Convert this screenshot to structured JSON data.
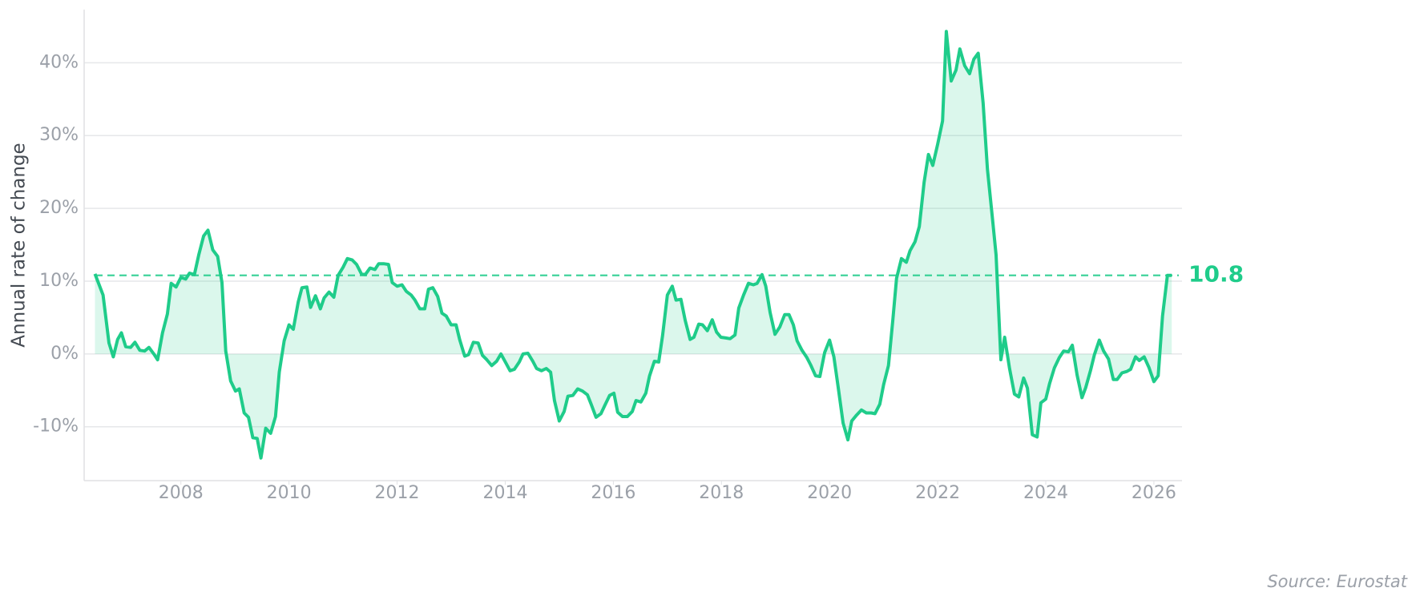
{
  "chart_data": {
    "type": "line",
    "ylabel": "Annual rate of change",
    "source": "Source: Eurostat",
    "color": "#1fcc8a",
    "grid": true,
    "reference_line": 10.8,
    "xlim": [
      2006.21,
      2026.52
    ],
    "ylim": [
      -17.4,
      47.3
    ],
    "xticks": [
      2008,
      2010,
      2012,
      2014,
      2016,
      2018,
      2020,
      2022,
      2024,
      2026
    ],
    "yticks": [
      {
        "value": -10,
        "label": "-10%"
      },
      {
        "value": 0,
        "label": "0%"
      },
      {
        "value": 10,
        "label": "10%"
      },
      {
        "value": 20,
        "label": "20%"
      },
      {
        "value": 30,
        "label": "30%"
      },
      {
        "value": 40,
        "label": "40%"
      }
    ],
    "x": [
      2006.41,
      2006.56,
      2006.67,
      2006.75,
      2006.83,
      2006.9,
      2006.98,
      2007.07,
      2007.15,
      2007.24,
      2007.33,
      2007.41,
      2007.5,
      2007.57,
      2007.66,
      2007.75,
      2007.82,
      2007.91,
      2008.0,
      2008.09,
      2008.16,
      2008.25,
      2008.33,
      2008.42,
      2008.5,
      2008.59,
      2008.68,
      2008.76,
      2008.83,
      2008.92,
      2009.01,
      2009.08,
      2009.17,
      2009.25,
      2009.33,
      2009.41,
      2009.48,
      2009.57,
      2009.66,
      2009.75,
      2009.82,
      2009.91,
      2010.0,
      2010.08,
      2010.17,
      2010.24,
      2010.33,
      2010.4,
      2010.49,
      2010.58,
      2010.65,
      2010.74,
      2010.83,
      2010.91,
      2011.0,
      2011.08,
      2011.17,
      2011.25,
      2011.34,
      2011.41,
      2011.5,
      2011.59,
      2011.66,
      2011.75,
      2011.84,
      2011.91,
      2012.0,
      2012.09,
      2012.17,
      2012.26,
      2012.33,
      2012.42,
      2012.51,
      2012.58,
      2012.66,
      2012.75,
      2012.83,
      2012.91,
      2013.0,
      2013.09,
      2013.16,
      2013.25,
      2013.32,
      2013.41,
      2013.5,
      2013.58,
      2013.66,
      2013.75,
      2013.84,
      2013.92,
      2014.01,
      2014.09,
      2014.17,
      2014.26,
      2014.33,
      2014.42,
      2014.51,
      2014.58,
      2014.67,
      2014.76,
      2014.84,
      2014.91,
      2015.0,
      2015.09,
      2015.16,
      2015.25,
      2015.34,
      2015.43,
      2015.52,
      2015.59,
      2015.68,
      2015.77,
      2015.84,
      2015.93,
      2016.01,
      2016.08,
      2016.17,
      2016.26,
      2016.35,
      2016.42,
      2016.51,
      2016.6,
      2016.67,
      2016.76,
      2016.84,
      2016.91,
      2017.0,
      2017.09,
      2017.16,
      2017.25,
      2017.33,
      2017.42,
      2017.49,
      2017.58,
      2017.65,
      2017.74,
      2017.83,
      2017.91,
      2017.99,
      2018.08,
      2018.16,
      2018.25,
      2018.32,
      2018.41,
      2018.5,
      2018.59,
      2018.66,
      2018.75,
      2018.82,
      2018.9,
      2018.99,
      2019.08,
      2019.17,
      2019.25,
      2019.33,
      2019.4,
      2019.49,
      2019.58,
      2019.65,
      2019.74,
      2019.82,
      2019.91,
      2020.0,
      2020.08,
      2020.16,
      2020.25,
      2020.34,
      2020.41,
      2020.5,
      2020.59,
      2020.68,
      2020.77,
      2020.84,
      2020.93,
      2021.0,
      2021.09,
      2021.17,
      2021.24,
      2021.33,
      2021.42,
      2021.49,
      2021.58,
      2021.66,
      2021.75,
      2021.83,
      2021.91,
      2022.0,
      2022.09,
      2022.16,
      2022.25,
      2022.34,
      2022.41,
      2022.5,
      2022.59,
      2022.67,
      2022.75,
      2022.84,
      2022.92,
      2023.01,
      2023.08,
      2023.17,
      2023.24,
      2023.33,
      2023.42,
      2023.5,
      2023.59,
      2023.66,
      2023.75,
      2023.84,
      2023.91,
      2024.0,
      2024.07,
      2024.16,
      2024.25,
      2024.33,
      2024.42,
      2024.49,
      2024.58,
      2024.67,
      2024.74,
      2024.83,
      2024.9,
      2024.99,
      2025.07,
      2025.16,
      2025.25,
      2025.32,
      2025.41,
      2025.5,
      2025.57,
      2025.66,
      2025.73,
      2025.82,
      2025.91,
      2026.0,
      2026.08,
      2026.16,
      2026.25,
      2026.33
    ],
    "values": [
      11.0,
      8.1,
      1.5,
      -0.4,
      2.0,
      2.9,
      1.0,
      0.9,
      1.6,
      0.5,
      0.4,
      0.9,
      0,
      -0.8,
      2.9,
      5.5,
      9.7,
      9.2,
      10.5,
      10.3,
      11.1,
      10.9,
      13.6,
      16.2,
      17.0,
      14.3,
      13.4,
      9.8,
      0.4,
      -3.7,
      -5.1,
      -4.8,
      -8.1,
      -8.7,
      -11.5,
      -11.6,
      -14.3,
      -10.2,
      -10.9,
      -8.6,
      -2.5,
      1.8,
      4.0,
      3.4,
      7.1,
      9.1,
      9.2,
      6.4,
      8.0,
      6.2,
      7.7,
      8.5,
      7.8,
      10.8,
      11.9,
      13.1,
      12.9,
      12.3,
      11.0,
      10.9,
      11.8,
      11.6,
      12.4,
      12.4,
      12.3,
      9.8,
      9.3,
      9.5,
      8.6,
      8.1,
      7.4,
      6.2,
      6.2,
      8.9,
      9.1,
      7.9,
      5.6,
      5.2,
      4.0,
      4.0,
      1.9,
      -0.3,
      -0.1,
      1.6,
      1.5,
      -0.2,
      -0.8,
      -1.6,
      -1.0,
      0,
      -1.2,
      -2.3,
      -2.1,
      -1.1,
      0,
      0.1,
      -1.0,
      -2.0,
      -2.3,
      -2.0,
      -2.5,
      -6.4,
      -9.2,
      -7.9,
      -5.8,
      -5.7,
      -4.8,
      -5.1,
      -5.6,
      -6.9,
      -8.7,
      -8.2,
      -7.1,
      -5.7,
      -5.4,
      -8.0,
      -8.6,
      -8.6,
      -7.9,
      -6.4,
      -6.6,
      -5.4,
      -3.0,
      -1.0,
      -1.1,
      2.5,
      8.1,
      9.3,
      7.4,
      7.5,
      4.6,
      2.0,
      2.3,
      4.1,
      4.0,
      3.2,
      4.7,
      3.0,
      2.3,
      2.2,
      2.1,
      2.6,
      6.3,
      8.1,
      9.7,
      9.5,
      9.7,
      10.9,
      9.3,
      5.7,
      2.7,
      3.7,
      5.4,
      5.4,
      4.0,
      1.8,
      0.5,
      -0.5,
      -1.5,
      -3.0,
      -3.1,
      0.2,
      1.9,
      -0.4,
      -4.6,
      -9.5,
      -11.8,
      -9.2,
      -8.4,
      -7.7,
      -8.1,
      -8.1,
      -8.2,
      -6.9,
      -4.2,
      -1.6,
      4.6,
      10.4,
      13.1,
      12.6,
      14.2,
      15.4,
      17.5,
      23.6,
      27.4,
      25.9,
      28.8,
      32.0,
      44.3,
      37.5,
      39.0,
      41.9,
      39.6,
      38.5,
      40.5,
      41.3,
      34.5,
      25.4,
      18.9,
      13.6,
      -0.8,
      2.3,
      -2.0,
      -5.5,
      -5.9,
      -3.3,
      -4.7,
      -11.1,
      -11.4,
      -6.7,
      -6.2,
      -4.1,
      -1.9,
      -0.5,
      0.4,
      0.3,
      1.2,
      -2.9,
      -6.0,
      -4.6,
      -2.2,
      -0.1,
      1.9,
      0.4,
      -0.7,
      -3.5,
      -3.5,
      -2.6,
      -2.4,
      -2.1,
      -0.4,
      -0.9,
      -0.4,
      -1.9,
      -3.8,
      -3.0,
      5.2,
      10.8,
      10.8
    ]
  }
}
